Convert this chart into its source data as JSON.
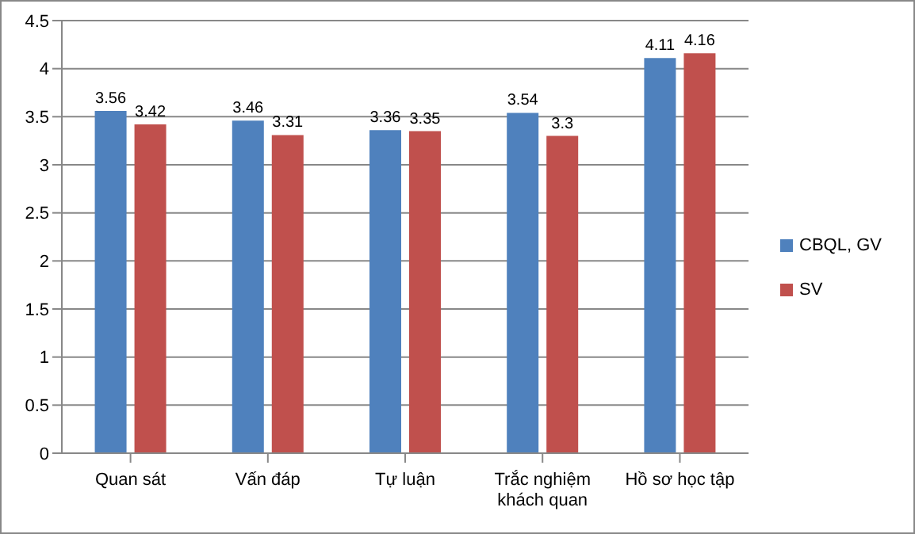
{
  "chart_data": {
    "type": "bar",
    "categories": [
      "Quan sát",
      "Vấn đáp",
      "Tự luận",
      "Trắc nghiệm khách quan",
      "Hồ sơ học tập"
    ],
    "series": [
      {
        "name": "CBQL, GV",
        "color": "#4f81bd",
        "values": [
          3.56,
          3.46,
          3.36,
          3.54,
          4.11
        ]
      },
      {
        "name": "SV",
        "color": "#c0504d",
        "values": [
          3.42,
          3.31,
          3.35,
          3.3,
          4.16
        ]
      }
    ],
    "ylim": [
      0,
      4.5
    ],
    "yticks": [
      0,
      0.5,
      1,
      1.5,
      2,
      2.5,
      3,
      3.5,
      4,
      4.5
    ],
    "grid": "y",
    "legend": "right",
    "data_labels": true
  }
}
